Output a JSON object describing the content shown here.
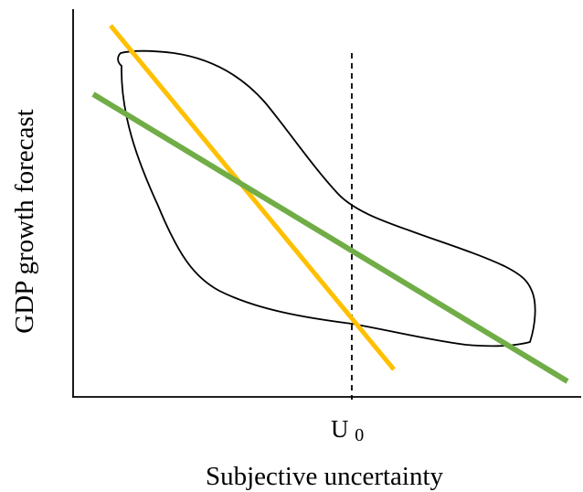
{
  "diagram": {
    "x_axis_label": "Subjective uncertainty",
    "y_axis_label": "GDP growth forecast",
    "threshold_label": {
      "main": "U",
      "subscript": "0"
    },
    "colors": {
      "axes": "#000000",
      "cloud_outline": "#000000",
      "steep_line": "#FFC000",
      "shallow_line": "#70AD47",
      "threshold_line": "#000000"
    }
  }
}
